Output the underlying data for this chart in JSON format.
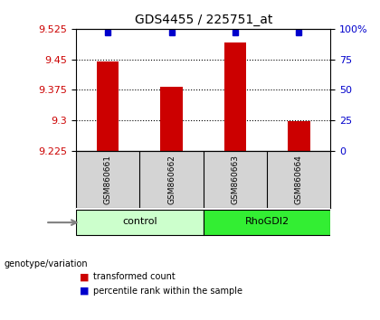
{
  "title": "GDS4455 / 225751_at",
  "samples": [
    "GSM860661",
    "GSM860662",
    "GSM860663",
    "GSM860664"
  ],
  "bar_values": [
    9.445,
    9.383,
    9.492,
    9.298
  ],
  "bar_bottom": 9.225,
  "percentile_values": [
    97,
    97,
    97,
    97
  ],
  "ylim_left": [
    9.225,
    9.525
  ],
  "ylim_right": [
    0,
    100
  ],
  "yticks_left": [
    9.225,
    9.3,
    9.375,
    9.45,
    9.525
  ],
  "yticks_right": [
    0,
    25,
    50,
    75,
    100
  ],
  "ytick_labels_right": [
    "0",
    "25",
    "50",
    "75",
    "100%"
  ],
  "bar_color": "#cc0000",
  "dot_color": "#0000cc",
  "groups": [
    {
      "label": "control",
      "indices": [
        0,
        1
      ],
      "color": "#ccffcc"
    },
    {
      "label": "RhoGDI2",
      "indices": [
        2,
        3
      ],
      "color": "#33ee33"
    }
  ],
  "group_label_prefix": "genotype/variation",
  "legend_items": [
    {
      "color": "#cc0000",
      "label": "transformed count"
    },
    {
      "color": "#0000cc",
      "label": "percentile rank within the sample"
    }
  ],
  "bg_color": "#d4d4d4",
  "plot_bg": "#ffffff",
  "bar_width": 0.35
}
